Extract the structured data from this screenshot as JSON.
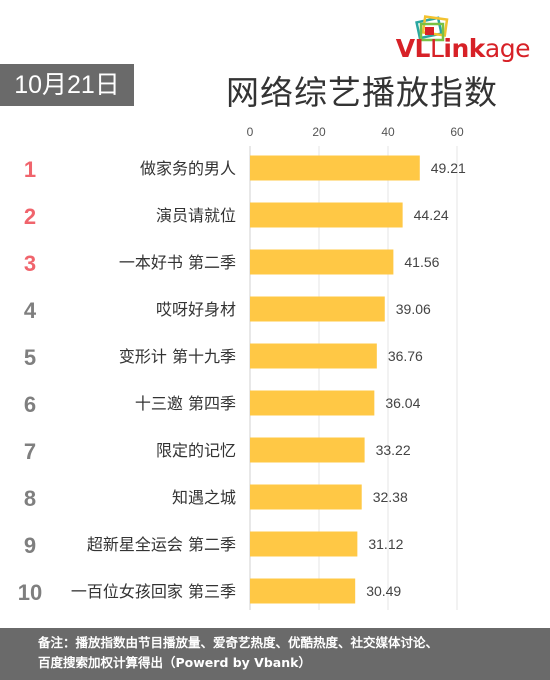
{
  "brand": {
    "vl": "VL",
    "ink": "ink",
    "age": "age"
  },
  "date": "10月21日",
  "title": "网络综艺播放指数",
  "footer": {
    "line1": "备注：播放指数由节目播放量、爱奇艺热度、优酷热度、社交媒体讨论、",
    "line2": "百度搜索加权计算得出（Powerd by Vbank）"
  },
  "colors": {
    "bar": "#ffc845",
    "rank_top": "#f0646c",
    "rank_other": "#7f7f7f",
    "grid": "#e6e6e6"
  },
  "chart_data": {
    "type": "bar",
    "orientation": "horizontal",
    "categories": [
      "做家务的男人",
      "演员请就位",
      "一本好书 第二季",
      "哎呀好身材",
      "变形计 第十九季",
      "十三邀 第四季",
      "限定的记忆",
      "知遇之城",
      "超新星全运会 第二季",
      "一百位女孩回家 第三季"
    ],
    "ranks": [
      "1",
      "2",
      "3",
      "4",
      "5",
      "6",
      "7",
      "8",
      "9",
      "10"
    ],
    "values": [
      49.21,
      44.24,
      41.56,
      39.06,
      36.76,
      36.04,
      33.22,
      32.38,
      31.12,
      30.49
    ],
    "xlim": [
      0,
      60
    ],
    "xticks": [
      0,
      20,
      40,
      60
    ],
    "grid": true
  }
}
